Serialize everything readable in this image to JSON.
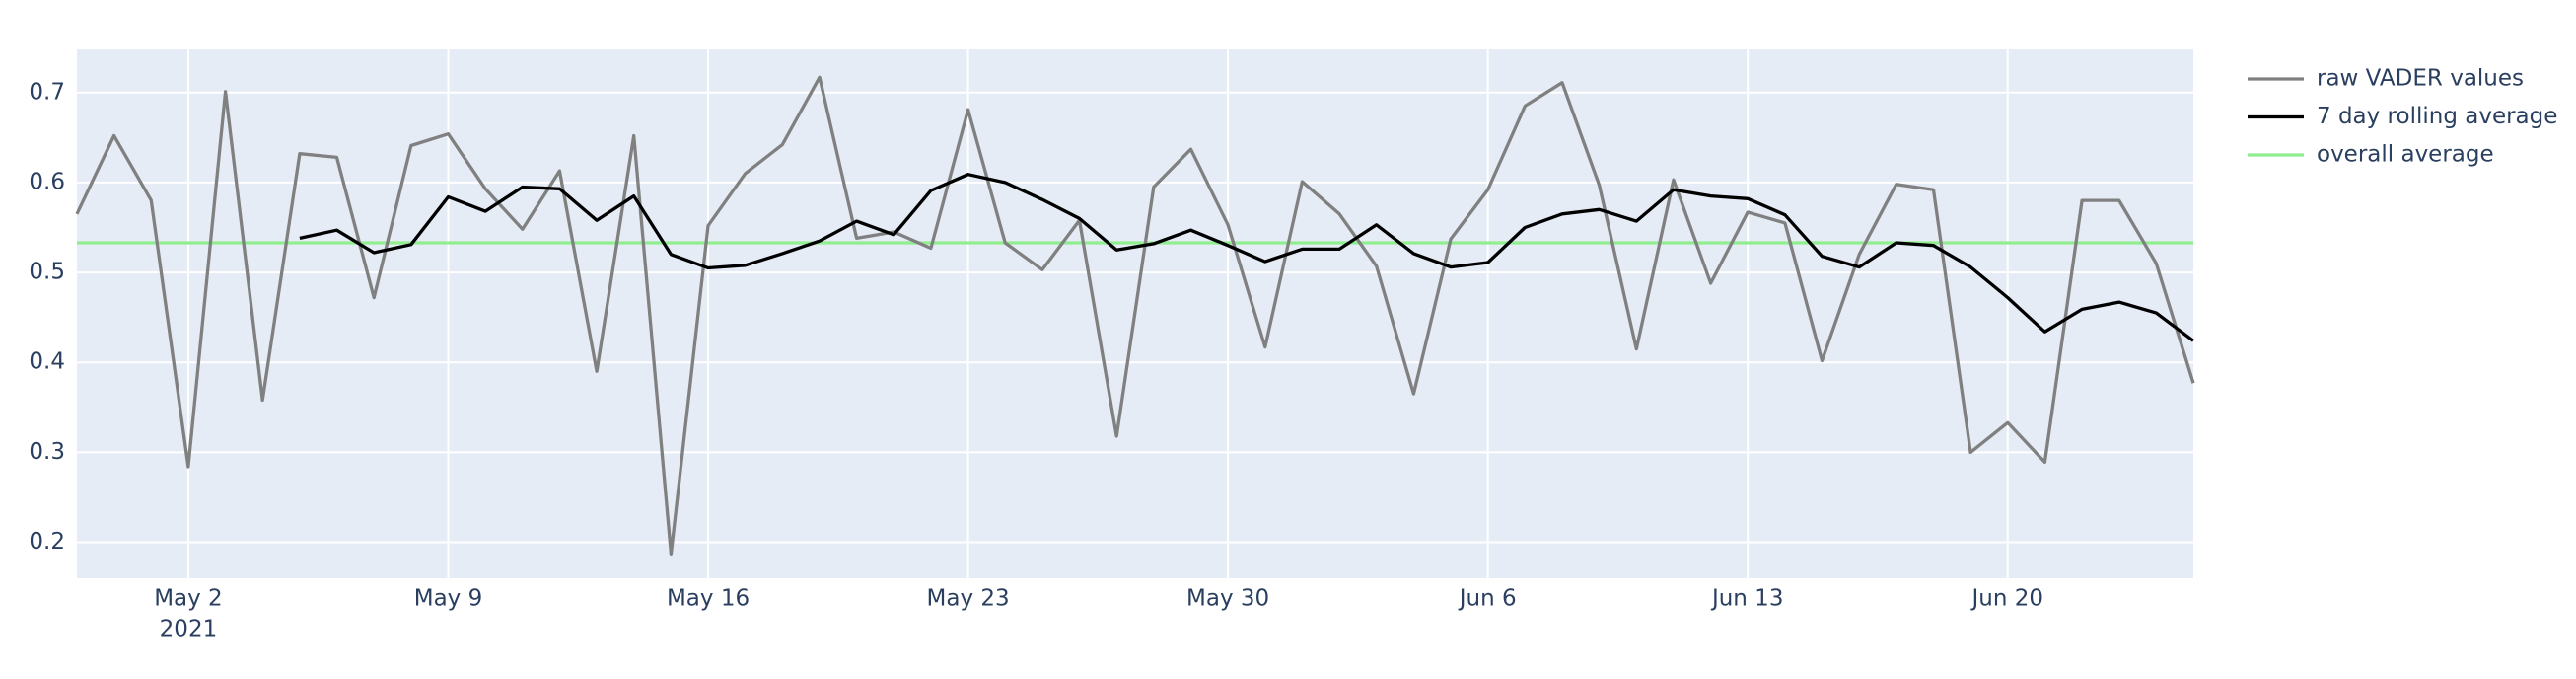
{
  "chart_data": {
    "type": "line",
    "x": [
      "2021-04-29",
      "2021-04-30",
      "2021-05-01",
      "2021-05-02",
      "2021-05-03",
      "2021-05-04",
      "2021-05-05",
      "2021-05-06",
      "2021-05-07",
      "2021-05-08",
      "2021-05-09",
      "2021-05-10",
      "2021-05-11",
      "2021-05-12",
      "2021-05-13",
      "2021-05-14",
      "2021-05-15",
      "2021-05-16",
      "2021-05-17",
      "2021-05-18",
      "2021-05-19",
      "2021-05-20",
      "2021-05-21",
      "2021-05-22",
      "2021-05-23",
      "2021-05-24",
      "2021-05-25",
      "2021-05-26",
      "2021-05-27",
      "2021-05-28",
      "2021-05-29",
      "2021-05-30",
      "2021-05-31",
      "2021-06-01",
      "2021-06-02",
      "2021-06-03",
      "2021-06-04",
      "2021-06-05",
      "2021-06-06",
      "2021-06-07",
      "2021-06-08",
      "2021-06-09",
      "2021-06-10",
      "2021-06-11",
      "2021-06-12",
      "2021-06-13",
      "2021-06-14",
      "2021-06-15",
      "2021-06-16",
      "2021-06-17",
      "2021-06-18",
      "2021-06-19",
      "2021-06-20",
      "2021-06-21",
      "2021-06-22",
      "2021-06-23",
      "2021-06-24",
      "2021-06-25"
    ],
    "series": [
      {
        "name": "raw VADER values",
        "color": "#808080",
        "values": [
          0.565,
          0.652,
          0.58,
          0.284,
          0.701,
          0.358,
          0.632,
          0.628,
          0.472,
          0.641,
          0.654,
          0.593,
          0.548,
          0.613,
          0.39,
          0.652,
          0.187,
          0.552,
          0.61,
          0.642,
          0.717,
          0.538,
          0.545,
          0.527,
          0.681,
          0.533,
          0.503,
          0.558,
          0.318,
          0.595,
          0.637,
          0.553,
          0.417,
          0.601,
          0.565,
          0.507,
          0.365,
          0.537,
          0.592,
          0.685,
          0.711,
          0.597,
          0.415,
          0.603,
          0.488,
          0.567,
          0.555,
          0.402,
          0.52,
          0.598,
          0.592,
          0.3,
          0.333,
          0.289,
          0.58,
          0.58,
          0.51,
          0.377
        ]
      },
      {
        "name": "7 day rolling average",
        "color": "#000000",
        "values": [
          null,
          null,
          null,
          null,
          null,
          null,
          0.538,
          0.547,
          0.522,
          0.531,
          0.584,
          0.568,
          0.595,
          0.593,
          0.558,
          0.585,
          0.52,
          0.505,
          0.508,
          0.521,
          0.535,
          0.557,
          0.542,
          0.591,
          0.609,
          0.6,
          0.581,
          0.56,
          0.525,
          0.532,
          0.547,
          0.53,
          0.512,
          0.526,
          0.526,
          0.553,
          0.521,
          0.506,
          0.511,
          0.55,
          0.565,
          0.57,
          0.557,
          0.592,
          0.585,
          0.582,
          0.564,
          0.518,
          0.506,
          0.533,
          0.53,
          0.506,
          0.472,
          0.434,
          0.459,
          0.467,
          0.455,
          0.424
        ]
      },
      {
        "name": "overall average",
        "color": "#90ee90",
        "values": [
          0.533,
          0.533,
          0.533,
          0.533,
          0.533,
          0.533,
          0.533,
          0.533,
          0.533,
          0.533,
          0.533,
          0.533,
          0.533,
          0.533,
          0.533,
          0.533,
          0.533,
          0.533,
          0.533,
          0.533,
          0.533,
          0.533,
          0.533,
          0.533,
          0.533,
          0.533,
          0.533,
          0.533,
          0.533,
          0.533,
          0.533,
          0.533,
          0.533,
          0.533,
          0.533,
          0.533,
          0.533,
          0.533,
          0.533,
          0.533,
          0.533,
          0.533,
          0.533,
          0.533,
          0.533,
          0.533,
          0.533,
          0.533,
          0.533,
          0.533,
          0.533,
          0.533,
          0.533,
          0.533,
          0.533,
          0.533,
          0.533,
          0.533
        ]
      }
    ],
    "xlim": [
      "2021-04-29",
      "2021-06-25"
    ],
    "xticks": [
      {
        "value": "2021-05-02",
        "label": "May 2"
      },
      {
        "value": "2021-05-09",
        "label": "May 9"
      },
      {
        "value": "2021-05-16",
        "label": "May 16"
      },
      {
        "value": "2021-05-23",
        "label": "May 23"
      },
      {
        "value": "2021-05-30",
        "label": "May 30"
      },
      {
        "value": "2021-06-06",
        "label": "Jun 6"
      },
      {
        "value": "2021-06-13",
        "label": "Jun 13"
      },
      {
        "value": "2021-06-20",
        "label": "Jun 20"
      }
    ],
    "x_year_label": "2021",
    "ylim": [
      0.16,
      0.748
    ],
    "yticks": [
      0.2,
      0.3,
      0.4,
      0.5,
      0.6,
      0.7
    ],
    "grid": true,
    "legend": "right"
  }
}
